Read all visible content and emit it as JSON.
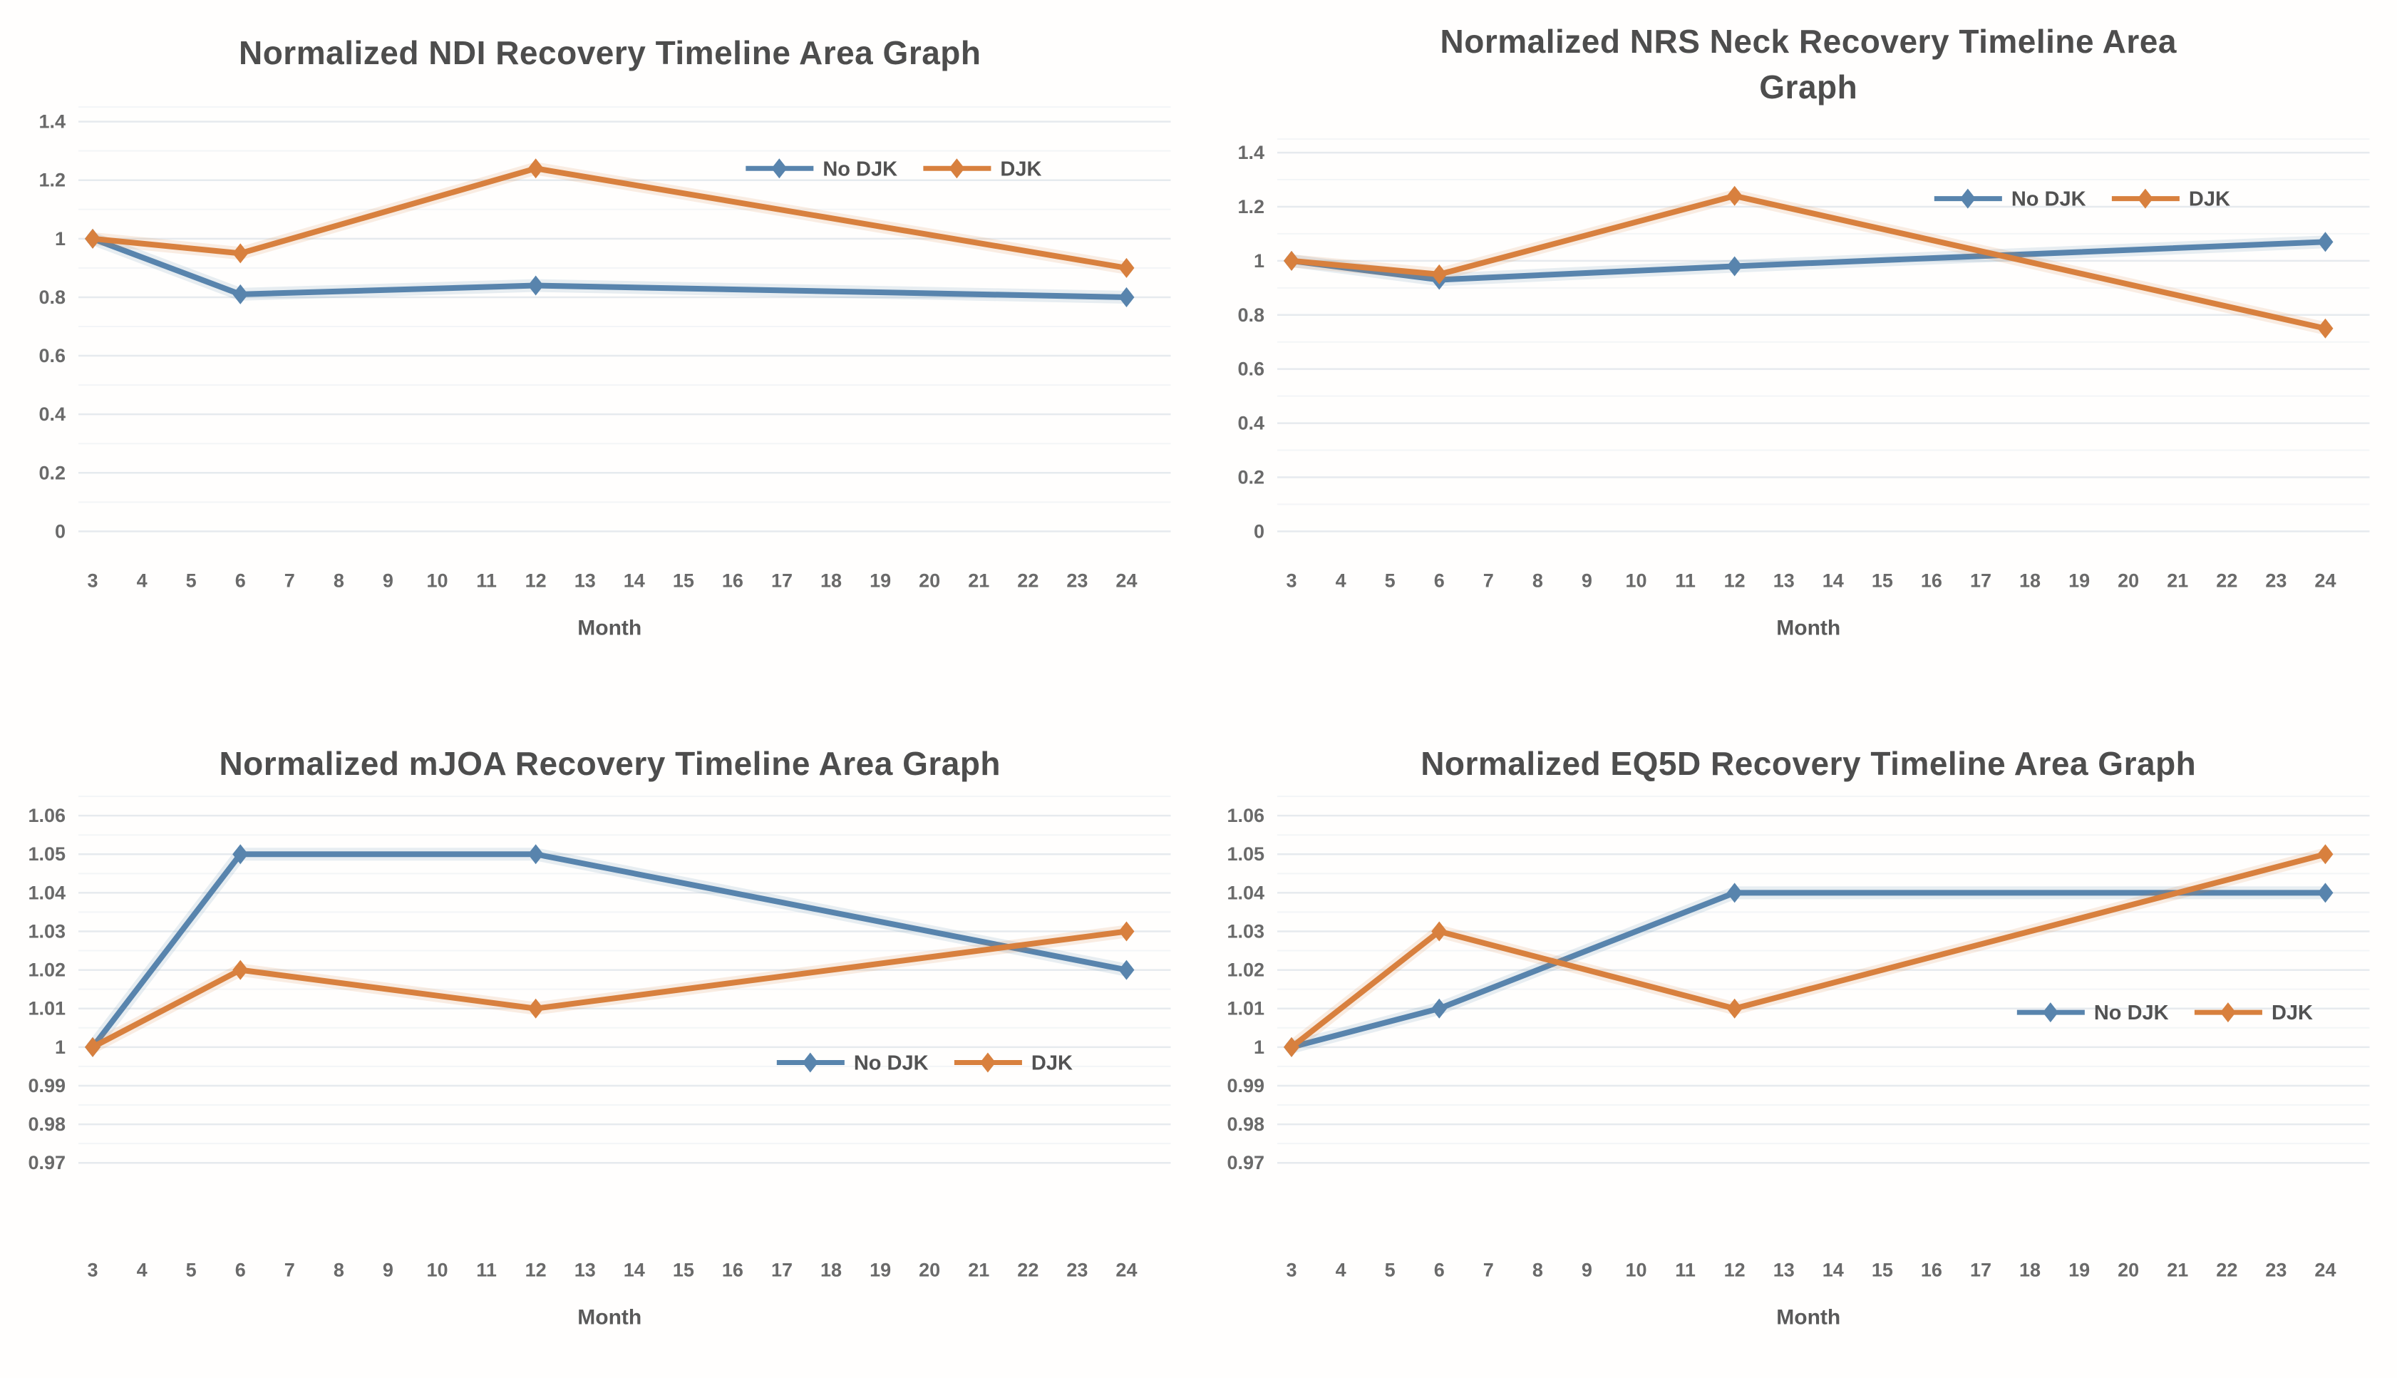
{
  "colors": {
    "no_djk": "#5884ad",
    "djk": "#d8803e",
    "grid_major": "#e6eaee",
    "grid_minor": "#f3f5f7",
    "title_text": "#4d4d4d",
    "tick_text": "#6a6a6a"
  },
  "chart_data": [
    {
      "type": "line",
      "title": "Normalized NDI Recovery Timeline Area Graph",
      "xlabel": "Month",
      "x_ticks": [
        3,
        4,
        5,
        6,
        7,
        8,
        9,
        10,
        11,
        12,
        13,
        14,
        15,
        16,
        17,
        18,
        19,
        20,
        21,
        22,
        23,
        24
      ],
      "x": [
        3,
        6,
        12,
        24
      ],
      "ylim": [
        0,
        1.45
      ],
      "yticks": [
        0,
        0.2,
        0.4,
        0.6,
        0.8,
        1,
        1.2,
        1.4
      ],
      "ytick_labels": [
        "0",
        "0.2",
        "0.4",
        "0.6",
        "0.8",
        "1",
        "1.2",
        "1.4"
      ],
      "grid": true,
      "legend_position": "inside-upper-right",
      "legend": {
        "x_frac": 0.78,
        "y_value": 1.24
      },
      "series": [
        {
          "name": "No DJK",
          "color_key": "no_djk",
          "values": [
            1.0,
            0.81,
            0.84,
            0.8
          ]
        },
        {
          "name": "DJK",
          "color_key": "djk",
          "values": [
            1.0,
            0.95,
            1.24,
            0.9
          ]
        }
      ]
    },
    {
      "type": "line",
      "title": "Normalized NRS Neck Recovery Timeline Area\nGraph",
      "xlabel": "Month",
      "x_ticks": [
        3,
        4,
        5,
        6,
        7,
        8,
        9,
        10,
        11,
        12,
        13,
        14,
        15,
        16,
        17,
        18,
        19,
        20,
        21,
        22,
        23,
        24
      ],
      "x": [
        3,
        6,
        12,
        24
      ],
      "ylim": [
        0,
        1.45
      ],
      "yticks": [
        0,
        0.2,
        0.4,
        0.6,
        0.8,
        1,
        1.2,
        1.4
      ],
      "ytick_labels": [
        "0",
        "0.2",
        "0.4",
        "0.6",
        "0.8",
        "1",
        "1.2",
        "1.4"
      ],
      "grid": true,
      "legend_position": "inside-upper-right",
      "legend": {
        "x_frac": 0.77,
        "y_value": 1.23
      },
      "series": [
        {
          "name": "No DJK",
          "color_key": "no_djk",
          "values": [
            1.0,
            0.93,
            0.98,
            1.07
          ]
        },
        {
          "name": "DJK",
          "color_key": "djk",
          "values": [
            1.0,
            0.95,
            1.24,
            0.75
          ]
        }
      ]
    },
    {
      "type": "line",
      "title": "Normalized mJOA Recovery Timeline Area Graph",
      "xlabel": "Month",
      "x_ticks": [
        3,
        4,
        5,
        6,
        7,
        8,
        9,
        10,
        11,
        12,
        13,
        14,
        15,
        16,
        17,
        18,
        19,
        20,
        21,
        22,
        23,
        24
      ],
      "x": [
        3,
        6,
        12,
        24
      ],
      "ylim": [
        0.955,
        1.065
      ],
      "yticks": [
        0.97,
        0.98,
        0.99,
        1,
        1.01,
        1.02,
        1.03,
        1.04,
        1.05,
        1.06
      ],
      "ytick_labels": [
        "0.97",
        "0.98",
        "0.99",
        "1",
        "1.01",
        "1.02",
        "1.03",
        "1.04",
        "1.05",
        "1.06"
      ],
      "grid": true,
      "legend_position": "inside-lower-right",
      "legend": {
        "x_frac": 0.81,
        "y_value": 0.996
      },
      "series": [
        {
          "name": "No DJK",
          "color_key": "no_djk",
          "values": [
            1.0,
            1.05,
            1.05,
            1.02
          ]
        },
        {
          "name": "DJK",
          "color_key": "djk",
          "values": [
            1.0,
            1.02,
            1.01,
            1.03
          ]
        }
      ]
    },
    {
      "type": "line",
      "title": "Normalized EQ5D Recovery Timeline Area Graph",
      "xlabel": "Month",
      "x_ticks": [
        3,
        4,
        5,
        6,
        7,
        8,
        9,
        10,
        11,
        12,
        13,
        14,
        15,
        16,
        17,
        18,
        19,
        20,
        21,
        22,
        23,
        24
      ],
      "x": [
        3,
        6,
        12,
        24
      ],
      "ylim": [
        0.955,
        1.065
      ],
      "yticks": [
        0.97,
        0.98,
        0.99,
        1,
        1.01,
        1.02,
        1.03,
        1.04,
        1.05,
        1.06
      ],
      "ytick_labels": [
        "0.97",
        "0.98",
        "0.99",
        "1",
        "1.01",
        "1.02",
        "1.03",
        "1.04",
        "1.05",
        "1.06"
      ],
      "grid": true,
      "legend_position": "inside-lower-right",
      "legend": {
        "x_frac": 0.85,
        "y_value": 1.009
      },
      "series": [
        {
          "name": "No DJK",
          "color_key": "no_djk",
          "values": [
            1.0,
            1.01,
            1.04,
            1.04
          ]
        },
        {
          "name": "DJK",
          "color_key": "djk",
          "values": [
            1.0,
            1.03,
            1.01,
            1.05
          ]
        }
      ]
    }
  ]
}
